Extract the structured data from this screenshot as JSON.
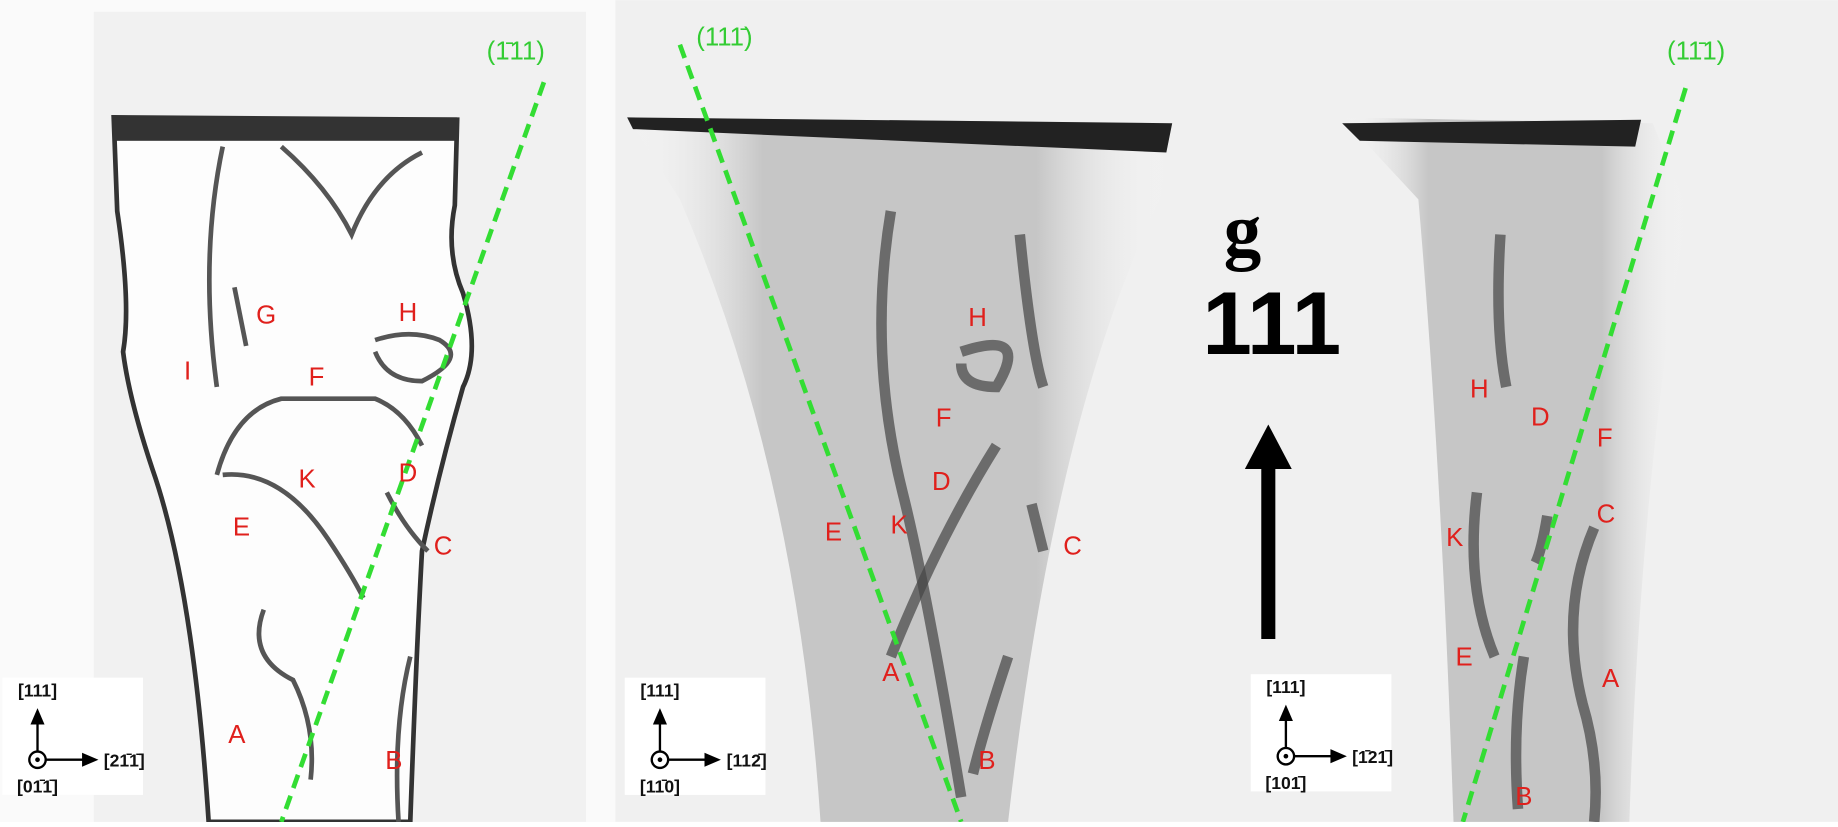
{
  "panels": [
    {
      "plane": "(1̄11)",
      "labels": [
        "G",
        "H",
        "I",
        "F",
        "K",
        "D",
        "E",
        "C",
        "A",
        "B"
      ],
      "axes": {
        "up": "[111]",
        "right": "[21̄1̄]",
        "out": "[01̄1̄]"
      }
    },
    {
      "plane": "(111̄)",
      "labels": [
        "H",
        "F",
        "D",
        "E",
        "K",
        "C",
        "A",
        "B"
      ],
      "axes": {
        "up": "[111]",
        "right": "[112̄]",
        "out": "[11̄0]"
      }
    },
    {
      "plane": "(11̄1)",
      "labels": [
        "H",
        "D",
        "F",
        "C",
        "K",
        "E",
        "A",
        "B"
      ],
      "axes": {
        "up": "[111]",
        "right": "[1̄21̄]",
        "out": "[101̄]"
      }
    }
  ],
  "g_vector": {
    "symbol": "g",
    "index": "111"
  }
}
